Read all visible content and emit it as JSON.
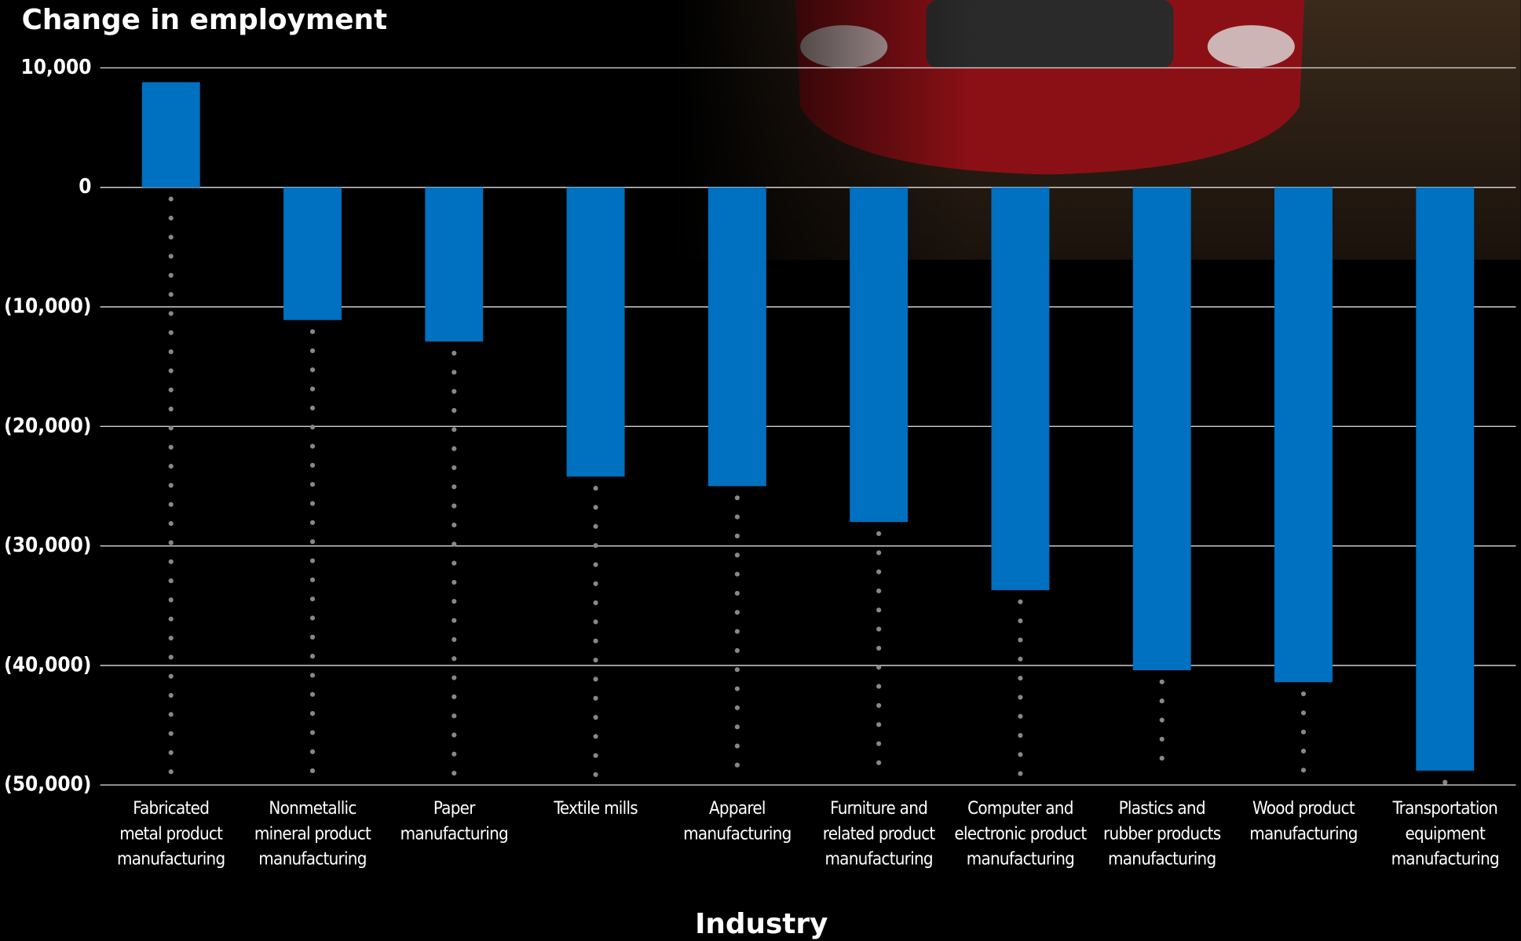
{
  "chart_data": {
    "type": "bar",
    "title": "Change in employment",
    "x_label": "Industry",
    "categories": [
      "Fabricated\nmetal product\nmanufacturing",
      "Nonmetallic\nmineral product\nmanufacturing",
      "Paper\nmanufacturing",
      "Textile mills",
      "Apparel\nmanufacturing",
      "Furniture and\nrelated product\nmanufacturing",
      "Computer and\nelectronic product\nmanufacturing",
      "Plastics and\nrubber products\nmanufacturing",
      "Wood product\nmanufacturing",
      "Transportation\nequipment\nmanufacturing"
    ],
    "values": [
      8800,
      -11100,
      -12900,
      -24200,
      -25000,
      -28000,
      -33700,
      -40400,
      -41400,
      -48800
    ],
    "color": "#0070c0",
    "ylim": [
      -50000,
      10000
    ],
    "yticks": [
      {
        "value": 10000,
        "label": "10,000"
      },
      0,
      {
        "value": -10000,
        "label": "(10,000)"
      },
      {
        "value": -20000,
        "label": "(20,000)"
      },
      {
        "value": -30000,
        "label": "(30,000)"
      },
      {
        "value": -40000,
        "label": "(40,000)"
      },
      {
        "value": -50000,
        "label": "(50,000)"
      }
    ],
    "grid": true
  }
}
